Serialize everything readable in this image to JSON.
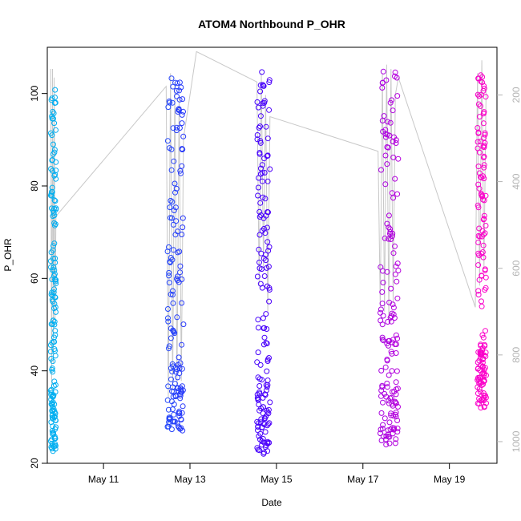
{
  "chart_data": {
    "type": "scatter",
    "title": "ATOM4 Northbound P_OHR",
    "xlabel": "Date",
    "ylabel": "P_OHR",
    "xlim": [
      9.7,
      20.1
    ],
    "ylim": [
      20,
      110
    ],
    "y2lim": [
      1050,
      90
    ],
    "x_ticks": [
      {
        "value": 11,
        "label": "May 11"
      },
      {
        "value": 13,
        "label": "May 13"
      },
      {
        "value": 15,
        "label": "May 15"
      },
      {
        "value": 17,
        "label": "May 17"
      },
      {
        "value": 19,
        "label": "May 19"
      }
    ],
    "y_ticks": [
      20,
      40,
      60,
      80,
      100
    ],
    "y2_ticks": [
      200,
      400,
      600,
      800,
      1000
    ],
    "colors": {
      "point_start": "#00b4f0",
      "point_mid": "#3a00ff",
      "point_end": "#ff00c8",
      "depth_trace": "#c8c8c8",
      "axis": "#000000",
      "right_axis": "#b3b3b3"
    },
    "casts": [
      {
        "start": 9.78,
        "end": 9.9,
        "ymin": 22,
        "ymax": 101
      },
      {
        "start": 12.48,
        "end": 12.85,
        "ymin": 27,
        "ymax": 105
      },
      {
        "start": 14.55,
        "end": 14.85,
        "ymin": 22,
        "ymax": 105
      },
      {
        "start": 17.4,
        "end": 17.82,
        "ymin": 24,
        "ymax": 105
      },
      {
        "start": 19.65,
        "end": 19.85,
        "ymin": 32,
        "ymax": 104
      }
    ],
    "depth_trace": [
      [
        9.78,
        140
      ],
      [
        9.8,
        880
      ],
      [
        9.82,
        140
      ],
      [
        9.84,
        820
      ],
      [
        9.86,
        160
      ],
      [
        9.88,
        720
      ],
      [
        9.9,
        480
      ],
      [
        12.45,
        180
      ],
      [
        12.5,
        900
      ],
      [
        12.55,
        150
      ],
      [
        12.6,
        880
      ],
      [
        12.65,
        170
      ],
      [
        12.7,
        870
      ],
      [
        12.75,
        200
      ],
      [
        12.8,
        860
      ],
      [
        12.85,
        300
      ],
      [
        13.15,
        100
      ],
      [
        14.55,
        170
      ],
      [
        14.6,
        640
      ],
      [
        14.65,
        150
      ],
      [
        14.7,
        600
      ],
      [
        14.75,
        200
      ],
      [
        14.8,
        700
      ],
      [
        14.85,
        250
      ],
      [
        17.35,
        330
      ],
      [
        17.4,
        690
      ],
      [
        17.45,
        150
      ],
      [
        17.5,
        700
      ],
      [
        17.55,
        130
      ],
      [
        17.6,
        720
      ],
      [
        17.65,
        140
      ],
      [
        17.7,
        680
      ],
      [
        17.75,
        200
      ],
      [
        17.82,
        160
      ],
      [
        19.6,
        690
      ],
      [
        19.65,
        150
      ],
      [
        19.7,
        640
      ],
      [
        19.75,
        120
      ],
      [
        19.8,
        600
      ],
      [
        19.85,
        180
      ]
    ]
  }
}
